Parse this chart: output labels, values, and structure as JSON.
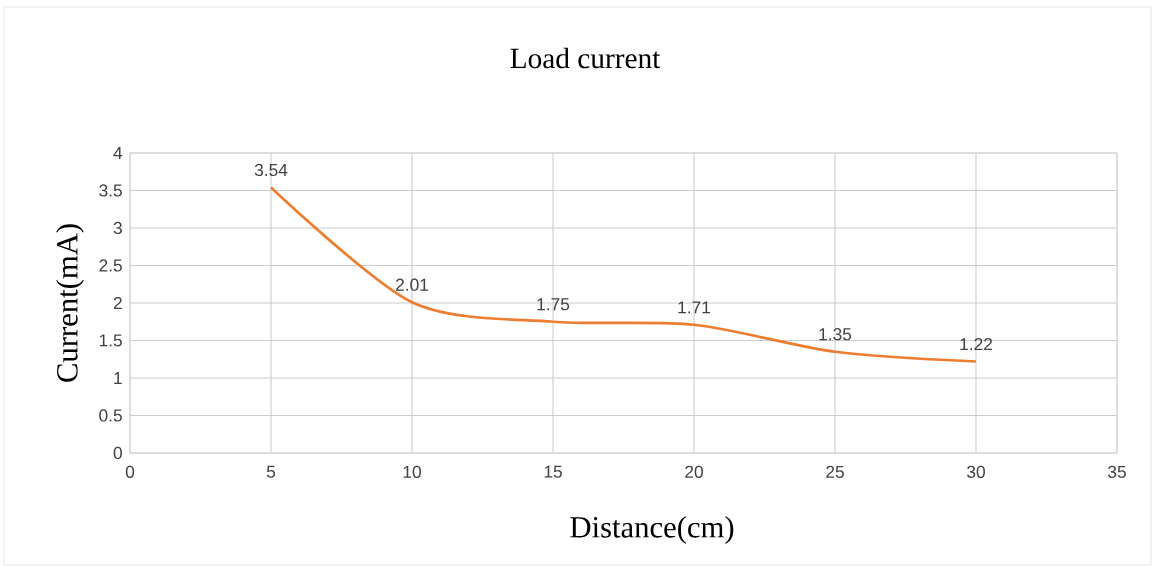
{
  "chart_data": {
    "type": "line",
    "title": "Load current",
    "xlabel": "Distance(cm)",
    "ylabel": "Current(mA)",
    "x": [
      5,
      10,
      15,
      20,
      25,
      30
    ],
    "series": [
      {
        "color": "#ed7d31",
        "values": [
          3.54,
          2.01,
          1.75,
          1.71,
          1.35,
          1.22
        ]
      }
    ],
    "xlim": [
      0,
      35
    ],
    "xticks": [
      0,
      5,
      10,
      15,
      20,
      25,
      30,
      35
    ],
    "ylim": [
      0,
      4
    ],
    "yticks": [
      0,
      0.5,
      1,
      1.5,
      2,
      2.5,
      3,
      3.5,
      4
    ],
    "grid": true,
    "data_labels": true,
    "marker": "none",
    "line_style": "solid"
  }
}
